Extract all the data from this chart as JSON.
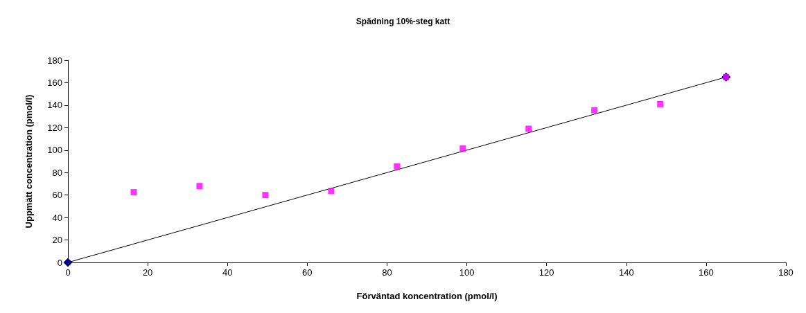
{
  "chart_data": {
    "type": "scatter",
    "title": "Spädning 10%-steg katt",
    "xlabel": "Förväntad koncentration (pmol/l)",
    "ylabel": "Uppmätt concentration (pmol/l)",
    "series": [
      {
        "type": "line",
        "color": "#000080",
        "marker": "diamond",
        "x": [
          0,
          165
        ],
        "values": [
          0,
          165
        ]
      },
      {
        "color": "#ff00ff",
        "marker": "square",
        "x": [
          16.5,
          33,
          49.5,
          66,
          82.5,
          99,
          115.5,
          132,
          148.5,
          165
        ],
        "values": [
          62.5,
          68,
          60,
          63.5,
          85.5,
          101.5,
          119,
          135.5,
          141,
          165
        ]
      }
    ],
    "xlim": [
      0,
      180
    ],
    "xticks": [
      0,
      20,
      40,
      60,
      80,
      100,
      120,
      140,
      160,
      180
    ],
    "ylim": [
      0,
      180
    ],
    "yticks": [
      0,
      20,
      40,
      60,
      80,
      100,
      120,
      140,
      160,
      180
    ],
    "grid": false
  }
}
